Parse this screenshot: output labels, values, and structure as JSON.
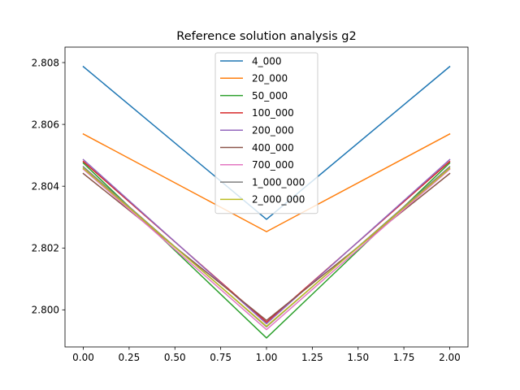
{
  "chart_data": {
    "type": "line",
    "title": "Reference solution analysis g2",
    "xlabel": "",
    "ylabel": "",
    "x": [
      0.0,
      1.0,
      2.0
    ],
    "xlim": [
      -0.1,
      2.1
    ],
    "ylim": [
      2.7988,
      2.8085
    ],
    "xticks": [
      0.0,
      0.25,
      0.5,
      0.75,
      1.0,
      1.25,
      1.5,
      1.75,
      2.0
    ],
    "xtick_labels": [
      "0.00",
      "0.25",
      "0.50",
      "0.75",
      "1.00",
      "1.25",
      "1.50",
      "1.75",
      "2.00"
    ],
    "yticks": [
      2.8,
      2.802,
      2.804,
      2.806,
      2.808
    ],
    "ytick_labels": [
      "2.800",
      "2.802",
      "2.804",
      "2.806",
      "2.808"
    ],
    "grid": false,
    "legend_position": "top-center",
    "series": [
      {
        "name": "4_000",
        "color": "#1f77b4",
        "values": [
          2.80787,
          2.80293,
          2.80787
        ]
      },
      {
        "name": "20_000",
        "color": "#ff7f0e",
        "values": [
          2.80569,
          2.80253,
          2.80569
        ]
      },
      {
        "name": "50_000",
        "color": "#2ca02c",
        "values": [
          2.80475,
          2.79909,
          2.80475
        ]
      },
      {
        "name": "100_000",
        "color": "#d62728",
        "values": [
          2.8048,
          2.7996,
          2.8048
        ]
      },
      {
        "name": "200_000",
        "color": "#9467bd",
        "values": [
          2.80486,
          2.79955,
          2.80486
        ]
      },
      {
        "name": "400_000",
        "color": "#8c564b",
        "values": [
          2.80441,
          2.79966,
          2.80441
        ]
      },
      {
        "name": "700_000",
        "color": "#e377c2",
        "values": [
          2.80455,
          2.79936,
          2.80455
        ]
      },
      {
        "name": "1_000_000",
        "color": "#7f7f7f",
        "values": [
          2.80463,
          2.79945,
          2.80463
        ]
      },
      {
        "name": "2_000_000",
        "color": "#bcbd22",
        "values": [
          2.80458,
          2.79947,
          2.80458
        ]
      }
    ]
  }
}
